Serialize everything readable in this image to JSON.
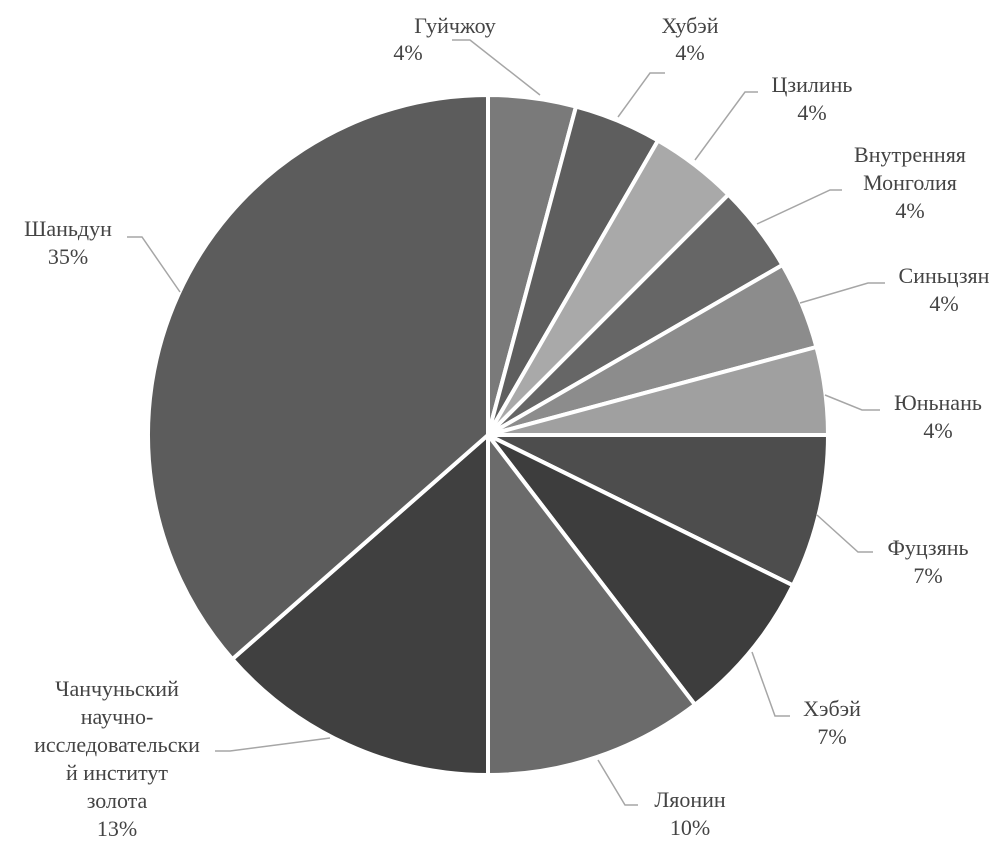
{
  "chart_data": {
    "type": "pie",
    "title": "",
    "legend": "none",
    "slices": [
      {
        "label": "Гуйчжоу",
        "percent_label": "4%",
        "value": 4,
        "color": "#7a7a7a"
      },
      {
        "label": "Хубэй",
        "percent_label": "4%",
        "value": 4,
        "color": "#5e5e5e"
      },
      {
        "label": "Цзилинь",
        "percent_label": "4%",
        "value": 4,
        "color": "#a9a9a9"
      },
      {
        "label": "Внутренняя Монголия",
        "percent_label": "4%",
        "value": 4,
        "color": "#666666"
      },
      {
        "label": "Синьцзян",
        "percent_label": "4%",
        "value": 4,
        "color": "#8c8c8c"
      },
      {
        "label": "Юньнань",
        "percent_label": "4%",
        "value": 4,
        "color": "#a0a0a0"
      },
      {
        "label": "Фуцзянь",
        "percent_label": "7%",
        "value": 7,
        "color": "#4d4d4d"
      },
      {
        "label": "Хэбэй",
        "percent_label": "7%",
        "value": 7,
        "color": "#3d3d3d"
      },
      {
        "label": "Ляонин",
        "percent_label": "10%",
        "value": 10,
        "color": "#6b6b6b"
      },
      {
        "label": "Чанчуньский научно-исследовательский институт золота",
        "percent_label": "13%",
        "value": 13,
        "color": "#404040"
      },
      {
        "label": "Шаньдун",
        "percent_label": "35%",
        "value": 35,
        "color": "#5c5c5c"
      }
    ]
  }
}
